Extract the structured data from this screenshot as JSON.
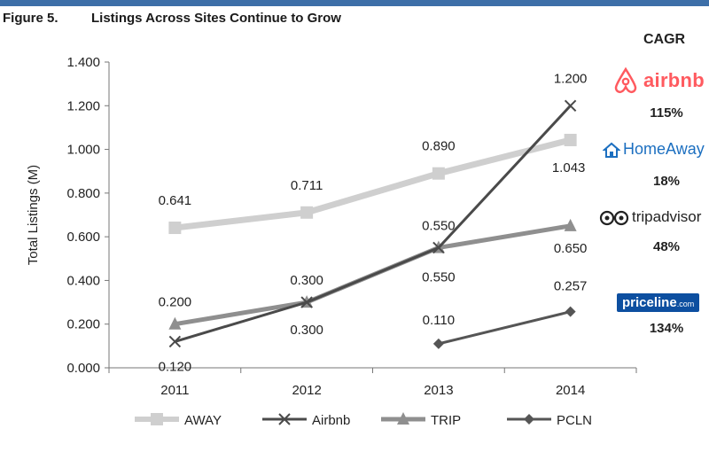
{
  "figure": {
    "number": "Figure 5.",
    "title": "Listings Across Sites Continue to Grow"
  },
  "cagr": {
    "header": "CAGR",
    "items": [
      {
        "brand": "airbnb",
        "value": "115%",
        "color": "#ff5a5f"
      },
      {
        "brand": "HomeAway",
        "value": "18%",
        "color": "#1c6fc0"
      },
      {
        "brand": "tripadvisor",
        "value": "48%",
        "color": "#222222"
      },
      {
        "brand": "priceline",
        "brand_suffix": ".com",
        "value": "134%",
        "color": "#0d4fa0"
      }
    ]
  },
  "chart_data": {
    "type": "line",
    "title": "Listings Across Sites Continue to Grow",
    "xlabel": "",
    "ylabel": "Total Listings (M)",
    "categories": [
      "2011",
      "2012",
      "2013",
      "2014"
    ],
    "ylim": [
      0,
      1.4
    ],
    "yticks": [
      "0.000",
      "0.200",
      "0.400",
      "0.600",
      "0.800",
      "1.000",
      "1.200",
      "1.400"
    ],
    "grid": false,
    "legend_position": "bottom",
    "series": [
      {
        "name": "AWAY",
        "values": [
          0.641,
          0.711,
          0.89,
          1.043
        ],
        "labels": [
          "0.641",
          "0.711",
          "0.890",
          "1.043"
        ],
        "color": "#cfcfcf",
        "marker": "square",
        "stroke_width": 7
      },
      {
        "name": "Airbnb",
        "values": [
          0.12,
          0.3,
          0.55,
          1.2
        ],
        "labels": [
          "0.120",
          "0.300",
          "0.550",
          "1.200"
        ],
        "color": "#4a4a4a",
        "marker": "x",
        "stroke_width": 3
      },
      {
        "name": "TRIP",
        "values": [
          0.2,
          0.3,
          0.55,
          0.65
        ],
        "labels": [
          "0.200",
          "0.300",
          "0.550",
          "0.650"
        ],
        "color": "#8f8f8f",
        "marker": "triangle",
        "stroke_width": 5
      },
      {
        "name": "PCLN",
        "values": [
          null,
          null,
          0.11,
          0.257
        ],
        "labels": [
          null,
          null,
          "0.110",
          "0.257"
        ],
        "color": "#555555",
        "marker": "diamond",
        "stroke_width": 3
      }
    ]
  }
}
